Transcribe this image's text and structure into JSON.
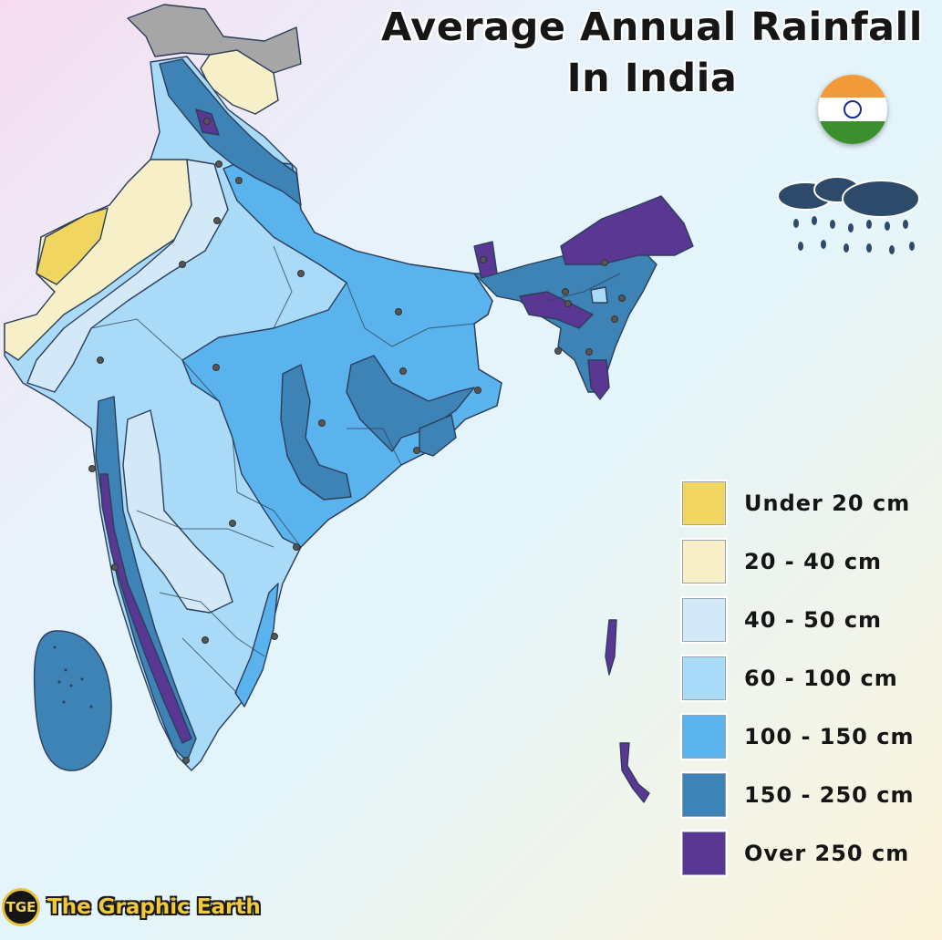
{
  "title": {
    "line1": "Average Annual Rainfall",
    "line2": "In India"
  },
  "legend": [
    {
      "label": "Under 20 cm",
      "color": "#f0d661"
    },
    {
      "label": "20 - 40 cm",
      "color": "#f6efc8"
    },
    {
      "label": "40 - 50 cm",
      "color": "#d4e9f8"
    },
    {
      "label": "60 - 100 cm",
      "color": "#a9daf8"
    },
    {
      "label": "100 - 150 cm",
      "color": "#5ab3ec"
    },
    {
      "label": "150 - 250 cm",
      "color": "#3e83b6"
    },
    {
      "label": "Over 250 cm",
      "color": "#5a3793"
    }
  ],
  "brand": {
    "logo_text": "TGE",
    "name": "The Graphic Earth"
  },
  "colors": {
    "region_outline": "#2c3e5a",
    "city_dot": "#555555",
    "disputed_gray": "#a6a6a6",
    "saffron": "#f29a3a",
    "india_green": "#3b8f2e"
  },
  "icons": {
    "flag": "india-flag-icon",
    "rain": "rain-cloud-icon"
  }
}
